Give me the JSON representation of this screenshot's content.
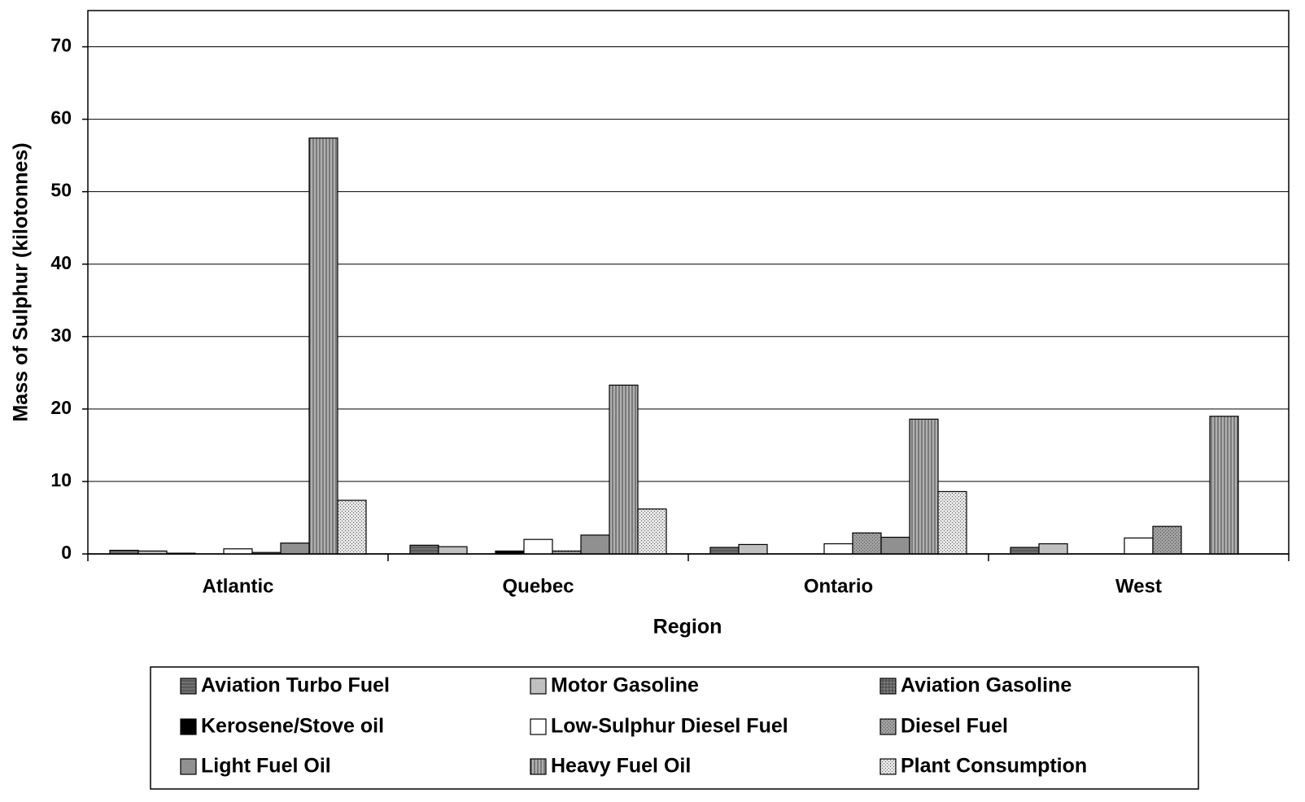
{
  "chart_data": {
    "type": "bar",
    "x_label": "Region",
    "y_label": "Mass of Sulphur (kilotonnes)",
    "categories": [
      "Atlantic",
      "Quebec",
      "Ontario",
      "West"
    ],
    "ylim": [
      0,
      75
    ],
    "yticks": [
      0,
      10,
      20,
      30,
      40,
      50,
      60,
      70
    ],
    "grid": true,
    "series": [
      {
        "name": "Aviation Turbo Fuel",
        "color": "#707070",
        "pattern": "hlines",
        "values": [
          0.5,
          1.2,
          0.9,
          0.9
        ]
      },
      {
        "name": "Motor Gasoline",
        "color": "#c0c0c0",
        "pattern": "none",
        "values": [
          0.4,
          1.0,
          1.3,
          1.4
        ]
      },
      {
        "name": "Aviation Gasoline",
        "color": "#808080",
        "pattern": "grid",
        "values": [
          0.1,
          0,
          0,
          0
        ]
      },
      {
        "name": "Kerosene/Stove oil",
        "color": "#000000",
        "pattern": "none",
        "values": [
          0,
          0.4,
          0,
          0
        ]
      },
      {
        "name": "Low-Sulphur Diesel Fuel",
        "color": "#ffffff",
        "pattern": "none",
        "values": [
          0.7,
          2.0,
          1.4,
          2.2
        ]
      },
      {
        "name": "Diesel Fuel",
        "color": "#a0a0a0",
        "pattern": "dots",
        "values": [
          0.2,
          0.4,
          2.9,
          3.8
        ]
      },
      {
        "name": "Light Fuel Oil",
        "color": "#909090",
        "pattern": "none",
        "values": [
          1.5,
          2.6,
          2.3,
          0
        ]
      },
      {
        "name": "Heavy Fuel Oil",
        "color": "#b0b0b0",
        "pattern": "vlines",
        "values": [
          57.4,
          23.3,
          18.6,
          19.0
        ]
      },
      {
        "name": "Plant Consumption",
        "color": "#e6e6e6",
        "pattern": "dots",
        "values": [
          7.4,
          6.2,
          8.6,
          0
        ]
      }
    ]
  }
}
